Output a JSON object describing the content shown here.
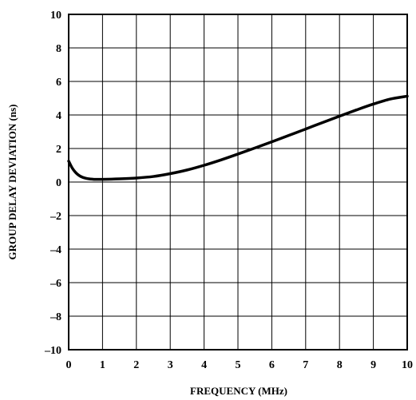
{
  "chart_data": {
    "type": "line",
    "title": "",
    "xlabel": "FREQUENCY (MHz)",
    "ylabel": "GROUP DELAY DEVIATION (ns)",
    "xlim": [
      0,
      10
    ],
    "ylim": [
      -10,
      10
    ],
    "x_ticks": [
      "0",
      "1",
      "2",
      "3",
      "4",
      "5",
      "6",
      "7",
      "8",
      "9",
      "10"
    ],
    "y_ticks": [
      "–10",
      "–8",
      "–6",
      "–4",
      "–2",
      "0",
      "2",
      "4",
      "6",
      "8",
      "10"
    ],
    "grid": true,
    "legend": "none",
    "line_color": "#000000",
    "series": [
      {
        "x": [
          0,
          0.1,
          0.2,
          0.3,
          0.4,
          0.5,
          0.6,
          0.7,
          0.8,
          1.0,
          1.5,
          2.0,
          2.5,
          3.0,
          3.5,
          4.0,
          4.5,
          5.0,
          5.5,
          6.0,
          6.5,
          7.0,
          7.5,
          8.0,
          8.5,
          9.0,
          9.5,
          10.0
        ],
        "y": [
          1.25,
          0.85,
          0.58,
          0.4,
          0.29,
          0.23,
          0.19,
          0.17,
          0.16,
          0.16,
          0.19,
          0.24,
          0.33,
          0.5,
          0.72,
          1.0,
          1.32,
          1.67,
          2.03,
          2.4,
          2.78,
          3.16,
          3.55,
          3.93,
          4.3,
          4.65,
          4.95,
          5.12
        ]
      }
    ]
  }
}
